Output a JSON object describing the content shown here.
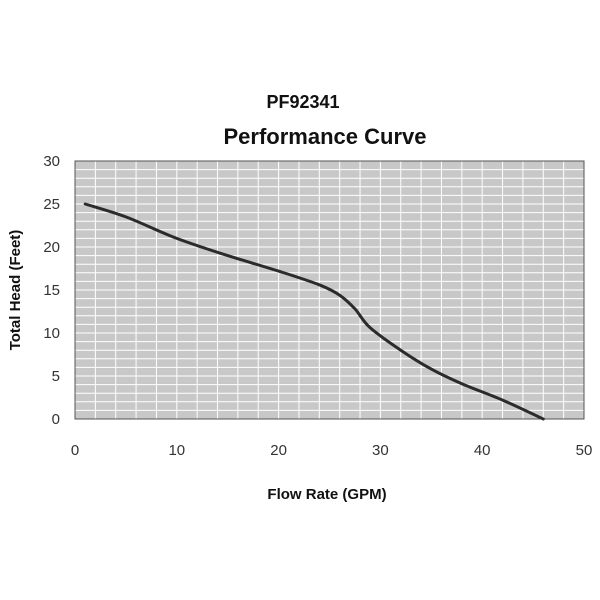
{
  "model": "PF92341",
  "chart_data": {
    "type": "line",
    "title": "Performance Curve",
    "xlabel": "Flow Rate (GPM)",
    "ylabel": "Total Head (Feet)",
    "xlim": [
      0,
      50
    ],
    "ylim": [
      0,
      30
    ],
    "xticks": [
      0,
      10,
      20,
      30,
      40,
      50
    ],
    "yticks": [
      0,
      5,
      10,
      15,
      20,
      25,
      30
    ],
    "grid": true,
    "x_minor_step": 2,
    "y_minor_step": 1,
    "series": [
      {
        "name": "PF92341",
        "x": [
          1,
          5,
          10,
          15,
          20,
          24,
          26,
          27.5,
          29,
          32,
          35,
          38,
          42,
          46
        ],
        "values": [
          25,
          23.5,
          21,
          19,
          17.2,
          15.6,
          14.4,
          12.8,
          10.6,
          8,
          5.8,
          4.1,
          2.2,
          0
        ]
      }
    ],
    "colors": {
      "plot_background": "#c8c8c8",
      "grid": "#ffffff",
      "line": "#2b2b2b",
      "frame": "#555555"
    }
  }
}
